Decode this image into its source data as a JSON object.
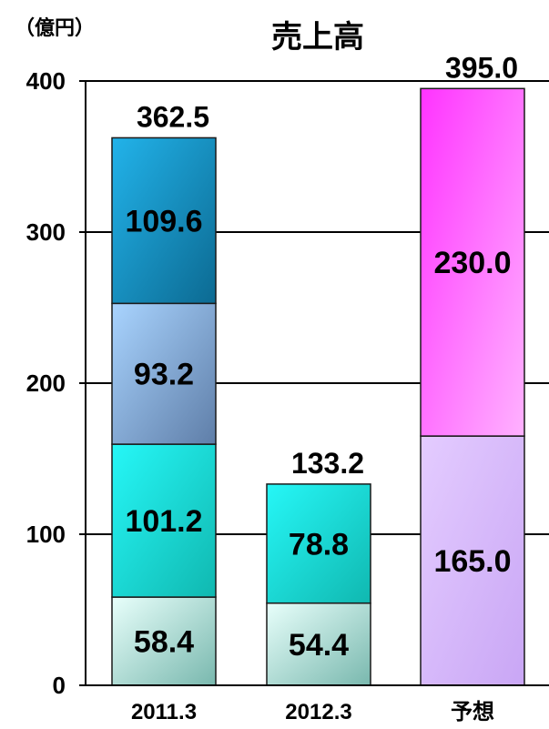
{
  "chart_data": {
    "type": "bar",
    "stacked": true,
    "title": "売上高",
    "unit_label": "（億円）",
    "ylim": [
      0,
      400
    ],
    "y_ticks": [
      "0",
      "100",
      "200",
      "300",
      "400"
    ],
    "grid": true,
    "categories": [
      "2011.3",
      "2012.3",
      "予想"
    ],
    "bars": [
      {
        "category": "2011.3",
        "total": "362.5",
        "segments": [
          {
            "value": 58.4,
            "label": "58.4",
            "color_top": "#e8fffb",
            "color_bottom": "#79b8ae",
            "edge": "#2f6e66"
          },
          {
            "value": 101.2,
            "label": "101.2",
            "color_top": "#26f7f7",
            "color_bottom": "#10b8b0",
            "edge": "#0a7c76"
          },
          {
            "value": 93.2,
            "label": "93.2",
            "color_top": "#a9d4ff",
            "color_bottom": "#5f7ea8",
            "edge": "#34486a"
          },
          {
            "value": 109.6,
            "label": "109.6",
            "color_top": "#22b3ea",
            "color_bottom": "#0c6a92",
            "edge": "#064a68"
          }
        ]
      },
      {
        "category": "2012.3",
        "total": "133.2",
        "segments": [
          {
            "value": 54.4,
            "label": "54.4",
            "color_top": "#e8fffb",
            "color_bottom": "#79b8ae",
            "edge": "#2f6e66"
          },
          {
            "value": 78.8,
            "label": "78.8",
            "color_top": "#26f7f7",
            "color_bottom": "#10b8b0",
            "edge": "#0a7c76"
          }
        ]
      },
      {
        "category": "予想",
        "total": "395.0",
        "segments": [
          {
            "value": 165.0,
            "label": "165.0",
            "color_top": "#e4ccff",
            "color_bottom": "#c9a6f5",
            "edge": "#7a5aa8"
          },
          {
            "value": 230.0,
            "label": "230.0",
            "color_top": "#ff33ff",
            "color_bottom": "#ffb2ff",
            "edge": "#a020a0"
          }
        ]
      }
    ]
  }
}
